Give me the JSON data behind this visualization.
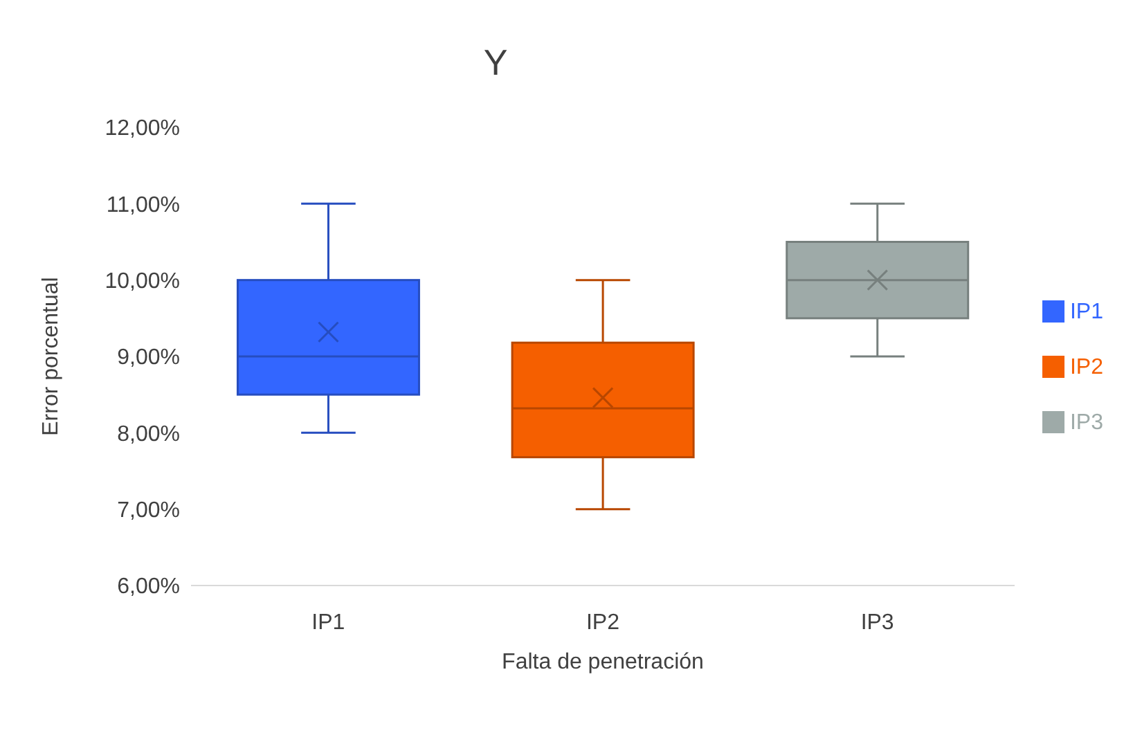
{
  "chart_data": {
    "type": "box",
    "title": "Y",
    "xlabel": "Falta de penetración",
    "ylabel": "Error porcentual",
    "categories": [
      "IP1",
      "IP2",
      "IP3"
    ],
    "series": [
      {
        "name": "IP1",
        "color": "#3366ff",
        "boxes": [
          {
            "low": 8,
            "q1": 8.5,
            "median": 9,
            "q3": 10,
            "high": 11,
            "mean": 9.32
          },
          null,
          null
        ]
      },
      {
        "name": "IP2",
        "color": "#f55f00",
        "boxes": [
          null,
          {
            "low": 7,
            "q1": 7.68,
            "median": 8.32,
            "q3": 9.18,
            "high": 10,
            "mean": 8.46
          },
          null
        ]
      },
      {
        "name": "IP3",
        "color": "#9eaaa8",
        "boxes": [
          null,
          null,
          {
            "low": 9,
            "q1": 9.5,
            "median": 10,
            "q3": 10.5,
            "high": 11,
            "mean": 10
          }
        ]
      }
    ],
    "ylim": [
      6,
      12
    ],
    "yticks": [
      {
        "value": 6,
        "label": "6,00%"
      },
      {
        "value": 7,
        "label": "7,00%"
      },
      {
        "value": 8,
        "label": "8,00%"
      },
      {
        "value": 9,
        "label": "9,00%"
      },
      {
        "value": 10,
        "label": "10,00%"
      },
      {
        "value": 11,
        "label": "11,00%"
      },
      {
        "value": 12,
        "label": "12,00%"
      }
    ],
    "grid": false,
    "legend": "right"
  }
}
